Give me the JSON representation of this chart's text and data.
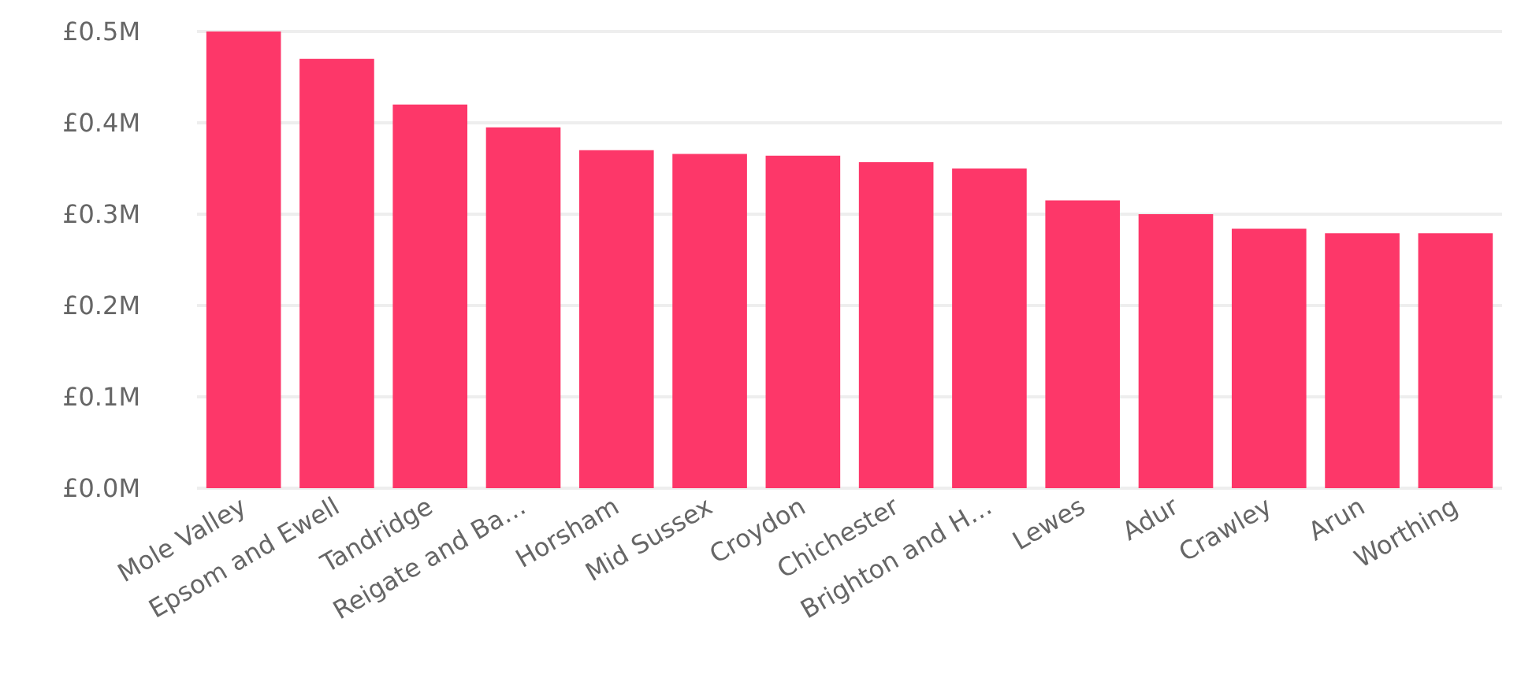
{
  "chart_data": {
    "type": "bar",
    "categories": [
      "Mole Valley",
      "Epsom and Ewell",
      "Tandridge",
      "Reigate and Ba…",
      "Horsham",
      "Mid Sussex",
      "Croydon",
      "Chichester",
      "Brighton and H…",
      "Lewes",
      "Adur",
      "Crawley",
      "Arun",
      "Worthing"
    ],
    "values": [
      0.5,
      0.47,
      0.42,
      0.395,
      0.37,
      0.366,
      0.364,
      0.357,
      0.35,
      0.315,
      0.3,
      0.284,
      0.279,
      0.279
    ],
    "color": "#fd3769",
    "ylim": [
      0,
      0.5
    ],
    "yticks": [
      {
        "value": 0,
        "label": "£0.0M"
      },
      {
        "value": 0.1,
        "label": "£0.1M"
      },
      {
        "value": 0.2,
        "label": "£0.2M"
      },
      {
        "value": 0.3,
        "label": "£0.3M"
      },
      {
        "value": 0.4,
        "label": "£0.4M"
      },
      {
        "value": 0.5,
        "label": "£0.5M"
      }
    ],
    "grid": "y"
  }
}
